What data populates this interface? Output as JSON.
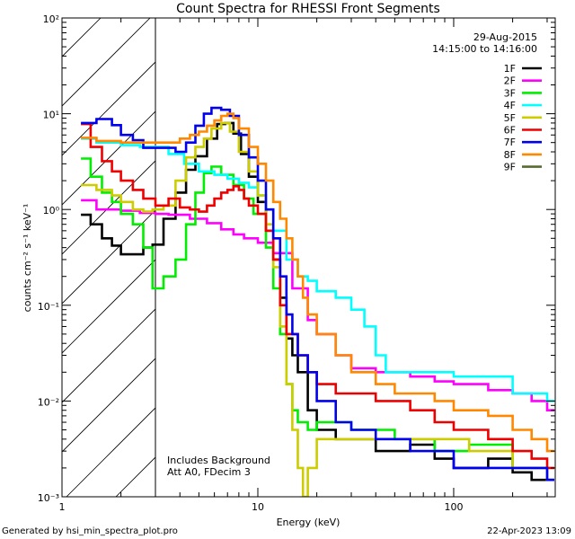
{
  "chart_data": {
    "type": "line",
    "title": "Count Spectra for RHESSI Front Segments",
    "xlabel": "Energy (keV)",
    "ylabel": "counts cm⁻² s⁻¹ keV⁻¹",
    "xscale": "log",
    "yscale": "log",
    "xlim": [
      1,
      330
    ],
    "ylim": [
      0.001,
      100
    ],
    "x_tick_labels": [
      "1",
      "10",
      "100"
    ],
    "y_tick_labels": [
      "10⁻³",
      "10⁻²",
      "10⁻¹",
      "10⁰",
      "10¹",
      "10²"
    ],
    "y_tick_values": [
      0.001,
      0.01,
      0.1,
      1,
      10,
      100
    ],
    "attenuator_shade_range_keV": [
      1,
      3
    ],
    "legend_position": "top-right",
    "date": "29-Aug-2015",
    "time_range": "14:15:00 to 14:16:00",
    "notes": [
      "Includes Background",
      "Att A0, FDecim 3"
    ],
    "series": [
      {
        "name": "1F",
        "color": "#000000",
        "points": [
          [
            1.25,
            0.88
          ],
          [
            1.4,
            0.7
          ],
          [
            1.6,
            0.5
          ],
          [
            1.8,
            0.42
          ],
          [
            2.0,
            0.34
          ],
          [
            2.3,
            0.34
          ],
          [
            2.6,
            0.4
          ],
          [
            2.9,
            0.43
          ],
          [
            3.3,
            0.8
          ],
          [
            3.8,
            1.5
          ],
          [
            4.3,
            2.6
          ],
          [
            4.8,
            3.6
          ],
          [
            5.5,
            5.5
          ],
          [
            6.2,
            7.8
          ],
          [
            6.8,
            8.0
          ],
          [
            7.5,
            6.2
          ],
          [
            8.2,
            3.8
          ],
          [
            9.0,
            2.2
          ],
          [
            10,
            1.2
          ],
          [
            11,
            0.6
          ],
          [
            12,
            0.3
          ],
          [
            13,
            0.12
          ],
          [
            14,
            0.045
          ],
          [
            15,
            0.03
          ],
          [
            16,
            0.02
          ],
          [
            18,
            0.008
          ],
          [
            20,
            0.005
          ],
          [
            25,
            0.004
          ],
          [
            30,
            0.004
          ],
          [
            40,
            0.003
          ],
          [
            60,
            0.0035
          ],
          [
            80,
            0.0025
          ],
          [
            100,
            0.002
          ],
          [
            150,
            0.0025
          ],
          [
            200,
            0.0018
          ],
          [
            250,
            0.0015
          ],
          [
            300,
            0.0015
          ]
        ]
      },
      {
        "name": "2F",
        "color": "#ff00ff",
        "points": [
          [
            1.25,
            1.25
          ],
          [
            1.5,
            1.0
          ],
          [
            2.0,
            0.97
          ],
          [
            2.5,
            0.92
          ],
          [
            3,
            0.9
          ],
          [
            3.5,
            0.88
          ],
          [
            4.5,
            0.8
          ],
          [
            5.5,
            0.72
          ],
          [
            6.5,
            0.62
          ],
          [
            7.5,
            0.55
          ],
          [
            8.5,
            0.5
          ],
          [
            10,
            0.45
          ],
          [
            12,
            0.35
          ],
          [
            15,
            0.15
          ],
          [
            18,
            0.07
          ],
          [
            20,
            0.05
          ],
          [
            25,
            0.03
          ],
          [
            30,
            0.022
          ],
          [
            40,
            0.02
          ],
          [
            60,
            0.018
          ],
          [
            80,
            0.016
          ],
          [
            100,
            0.015
          ],
          [
            150,
            0.013
          ],
          [
            200,
            0.012
          ],
          [
            250,
            0.01
          ],
          [
            300,
            0.008
          ]
        ]
      },
      {
        "name": "3F",
        "color": "#00ee00",
        "points": [
          [
            1.25,
            3.4
          ],
          [
            1.4,
            2.2
          ],
          [
            1.6,
            1.5
          ],
          [
            1.8,
            1.2
          ],
          [
            2.0,
            0.9
          ],
          [
            2.3,
            0.7
          ],
          [
            2.6,
            0.4
          ],
          [
            2.9,
            0.15
          ],
          [
            3.3,
            0.2
          ],
          [
            3.8,
            0.3
          ],
          [
            4.3,
            0.7
          ],
          [
            4.8,
            1.5
          ],
          [
            5.3,
            2.4
          ],
          [
            5.8,
            2.8
          ],
          [
            6.5,
            2.3
          ],
          [
            7.5,
            1.8
          ],
          [
            8.5,
            1.3
          ],
          [
            9.5,
            0.9
          ],
          [
            11,
            0.4
          ],
          [
            12,
            0.15
          ],
          [
            13,
            0.05
          ],
          [
            14,
            0.015
          ],
          [
            15,
            0.008
          ],
          [
            16,
            0.006
          ],
          [
            18,
            0.005
          ],
          [
            20,
            0.006
          ],
          [
            30,
            0.005
          ],
          [
            50,
            0.004
          ],
          [
            80,
            0.003
          ],
          [
            120,
            0.0035
          ],
          [
            200,
            0.002
          ],
          [
            300,
            0.0015
          ]
        ]
      },
      {
        "name": "4F",
        "color": "#00ffff",
        "points": [
          [
            1.25,
            5.5
          ],
          [
            1.5,
            5.0
          ],
          [
            2.0,
            4.7
          ],
          [
            2.5,
            4.5
          ],
          [
            3,
            4.5
          ],
          [
            3.5,
            3.8
          ],
          [
            4.2,
            3.0
          ],
          [
            5,
            2.5
          ],
          [
            6,
            2.3
          ],
          [
            7,
            2.1
          ],
          [
            8,
            1.9
          ],
          [
            9,
            1.7
          ],
          [
            10,
            1.4
          ],
          [
            11,
            1.0
          ],
          [
            12,
            0.6
          ],
          [
            14,
            0.3
          ],
          [
            16,
            0.2
          ],
          [
            18,
            0.18
          ],
          [
            20,
            0.14
          ],
          [
            25,
            0.12
          ],
          [
            30,
            0.09
          ],
          [
            35,
            0.06
          ],
          [
            40,
            0.03
          ],
          [
            45,
            0.02
          ],
          [
            60,
            0.02
          ],
          [
            80,
            0.02
          ],
          [
            100,
            0.018
          ],
          [
            150,
            0.018
          ],
          [
            200,
            0.012
          ],
          [
            250,
            0.012
          ],
          [
            300,
            0.01
          ]
        ]
      },
      {
        "name": "5F",
        "color": "#cccc00",
        "points": [
          [
            1.25,
            1.8
          ],
          [
            1.5,
            1.6
          ],
          [
            1.8,
            1.4
          ],
          [
            2.0,
            1.2
          ],
          [
            2.3,
            1.0
          ],
          [
            2.6,
            0.95
          ],
          [
            2.9,
            1.0
          ],
          [
            3.3,
            1.1
          ],
          [
            3.8,
            2.0
          ],
          [
            4.3,
            3.5
          ],
          [
            4.8,
            4.5
          ],
          [
            5.3,
            5.5
          ],
          [
            5.8,
            7.0
          ],
          [
            6.5,
            8.0
          ],
          [
            7.2,
            6.5
          ],
          [
            8.0,
            4.0
          ],
          [
            9.0,
            2.5
          ],
          [
            10,
            1.4
          ],
          [
            11,
            0.7
          ],
          [
            12,
            0.25
          ],
          [
            13,
            0.06
          ],
          [
            14,
            0.015
          ],
          [
            15,
            0.005
          ],
          [
            16,
            0.002
          ],
          [
            17,
            0.001
          ],
          [
            18,
            0.002
          ],
          [
            20,
            0.004
          ],
          [
            30,
            0.004
          ],
          [
            50,
            0.004
          ],
          [
            80,
            0.004
          ],
          [
            120,
            0.003
          ],
          [
            200,
            0.002
          ],
          [
            300,
            0.0015
          ]
        ]
      },
      {
        "name": "6F",
        "color": "#ee0000",
        "points": [
          [
            1.25,
            7.8
          ],
          [
            1.4,
            4.5
          ],
          [
            1.6,
            3.2
          ],
          [
            1.8,
            2.5
          ],
          [
            2.0,
            2.0
          ],
          [
            2.3,
            1.6
          ],
          [
            2.6,
            1.3
          ],
          [
            3,
            1.1
          ],
          [
            3.5,
            1.3
          ],
          [
            4,
            1.05
          ],
          [
            4.5,
            1.0
          ],
          [
            5,
            0.95
          ],
          [
            5.5,
            1.1
          ],
          [
            6,
            1.3
          ],
          [
            6.5,
            1.5
          ],
          [
            7,
            1.6
          ],
          [
            7.5,
            1.75
          ],
          [
            8,
            1.6
          ],
          [
            8.5,
            1.3
          ],
          [
            9,
            1.1
          ],
          [
            10,
            0.9
          ],
          [
            11,
            0.6
          ],
          [
            12,
            0.3
          ],
          [
            13,
            0.1
          ],
          [
            14,
            0.05
          ],
          [
            16,
            0.03
          ],
          [
            18,
            0.02
          ],
          [
            20,
            0.015
          ],
          [
            25,
            0.012
          ],
          [
            30,
            0.012
          ],
          [
            40,
            0.01
          ],
          [
            60,
            0.008
          ],
          [
            80,
            0.006
          ],
          [
            100,
            0.005
          ],
          [
            150,
            0.004
          ],
          [
            200,
            0.003
          ],
          [
            250,
            0.0025
          ],
          [
            300,
            0.002
          ]
        ]
      },
      {
        "name": "7F",
        "color": "#0000ee",
        "points": [
          [
            1.25,
            8.0
          ],
          [
            1.5,
            8.8
          ],
          [
            1.8,
            7.6
          ],
          [
            2.0,
            6.0
          ],
          [
            2.3,
            5.3
          ],
          [
            2.6,
            4.4
          ],
          [
            2.9,
            4.4
          ],
          [
            3.3,
            4.4
          ],
          [
            3.8,
            4.0
          ],
          [
            4.3,
            5.0
          ],
          [
            4.8,
            7.5
          ],
          [
            5.3,
            10
          ],
          [
            5.8,
            11.5
          ],
          [
            6.5,
            11
          ],
          [
            7.2,
            9.5
          ],
          [
            8.0,
            6.0
          ],
          [
            9.0,
            3.5
          ],
          [
            10,
            2.0
          ],
          [
            11,
            1.0
          ],
          [
            12,
            0.5
          ],
          [
            13,
            0.2
          ],
          [
            14,
            0.08
          ],
          [
            15,
            0.05
          ],
          [
            16,
            0.03
          ],
          [
            18,
            0.02
          ],
          [
            20,
            0.01
          ],
          [
            25,
            0.006
          ],
          [
            30,
            0.005
          ],
          [
            40,
            0.004
          ],
          [
            60,
            0.003
          ],
          [
            80,
            0.003
          ],
          [
            100,
            0.002
          ],
          [
            150,
            0.002
          ],
          [
            200,
            0.002
          ],
          [
            300,
            0.0015
          ]
        ]
      },
      {
        "name": "8F",
        "color": "#ff8800",
        "points": [
          [
            1.25,
            5.6
          ],
          [
            1.5,
            5.2
          ],
          [
            2.0,
            5.0
          ],
          [
            2.5,
            5.0
          ],
          [
            3,
            5.0
          ],
          [
            3.5,
            5.0
          ],
          [
            4.0,
            5.5
          ],
          [
            4.5,
            6.0
          ],
          [
            5.0,
            6.5
          ],
          [
            5.5,
            7.5
          ],
          [
            6.0,
            8.5
          ],
          [
            6.5,
            9.5
          ],
          [
            7.0,
            10
          ],
          [
            7.5,
            9.0
          ],
          [
            8.0,
            7.0
          ],
          [
            9.0,
            4.5
          ],
          [
            10,
            3.0
          ],
          [
            11,
            2.0
          ],
          [
            12,
            1.2
          ],
          [
            13,
            0.8
          ],
          [
            14,
            0.5
          ],
          [
            15,
            0.3
          ],
          [
            16,
            0.2
          ],
          [
            17,
            0.12
          ],
          [
            18,
            0.08
          ],
          [
            20,
            0.05
          ],
          [
            25,
            0.03
          ],
          [
            30,
            0.02
          ],
          [
            40,
            0.015
          ],
          [
            50,
            0.012
          ],
          [
            60,
            0.012
          ],
          [
            80,
            0.01
          ],
          [
            100,
            0.008
          ],
          [
            150,
            0.007
          ],
          [
            200,
            0.005
          ],
          [
            250,
            0.004
          ],
          [
            300,
            0.003
          ]
        ]
      },
      {
        "name": "9F",
        "color": "#556b2f",
        "points": []
      }
    ]
  },
  "footer": {
    "generated_by": "Generated by hsi_min_spectra_plot.pro",
    "generated_on": "22-Apr-2023 13:09"
  }
}
